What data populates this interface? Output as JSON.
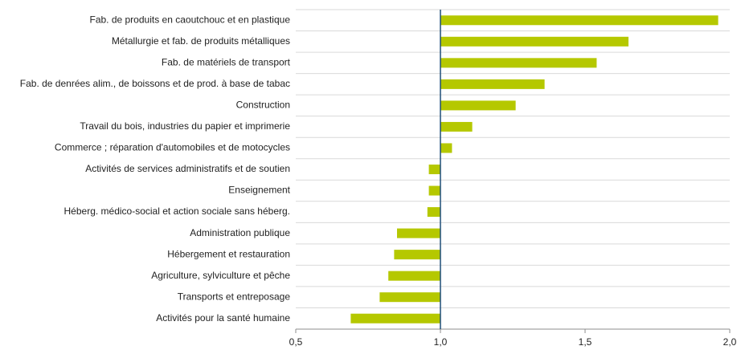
{
  "chart_data": {
    "type": "barh",
    "categories": [
      "Fab. de produits en caoutchouc et en plastique",
      "Métallurgie et fab. de produits métalliques",
      "Fab. de matériels de transport",
      "Fab. de denrées alim., de boissons et de prod. à base de tabac",
      "Construction",
      "Travail du bois, industries du papier et imprimerie",
      "Commerce ; réparation d'automobiles et de motocycles",
      "Activités de services administratifs et de soutien",
      "Enseignement",
      "Héberg. médico-social et action sociale sans héberg.",
      "Administration publique",
      "Hébergement et restauration",
      "Agriculture, sylviculture et pêche",
      "Transports et entreposage",
      "Activités pour la santé humaine"
    ],
    "values": [
      1.96,
      1.65,
      1.54,
      1.36,
      1.26,
      1.11,
      1.04,
      0.96,
      0.96,
      0.955,
      0.85,
      0.84,
      0.82,
      0.79,
      0.69
    ],
    "color": "#b5c800",
    "baseline": 1,
    "xlim": [
      0.5,
      2.0
    ],
    "xticks": [
      {
        "value": 0.5,
        "label": "0,5"
      },
      {
        "value": 1.0,
        "label": "1,0"
      },
      {
        "value": 1.5,
        "label": "1,5"
      },
      {
        "value": 2.0,
        "label": "2,0"
      }
    ],
    "grid": true
  }
}
